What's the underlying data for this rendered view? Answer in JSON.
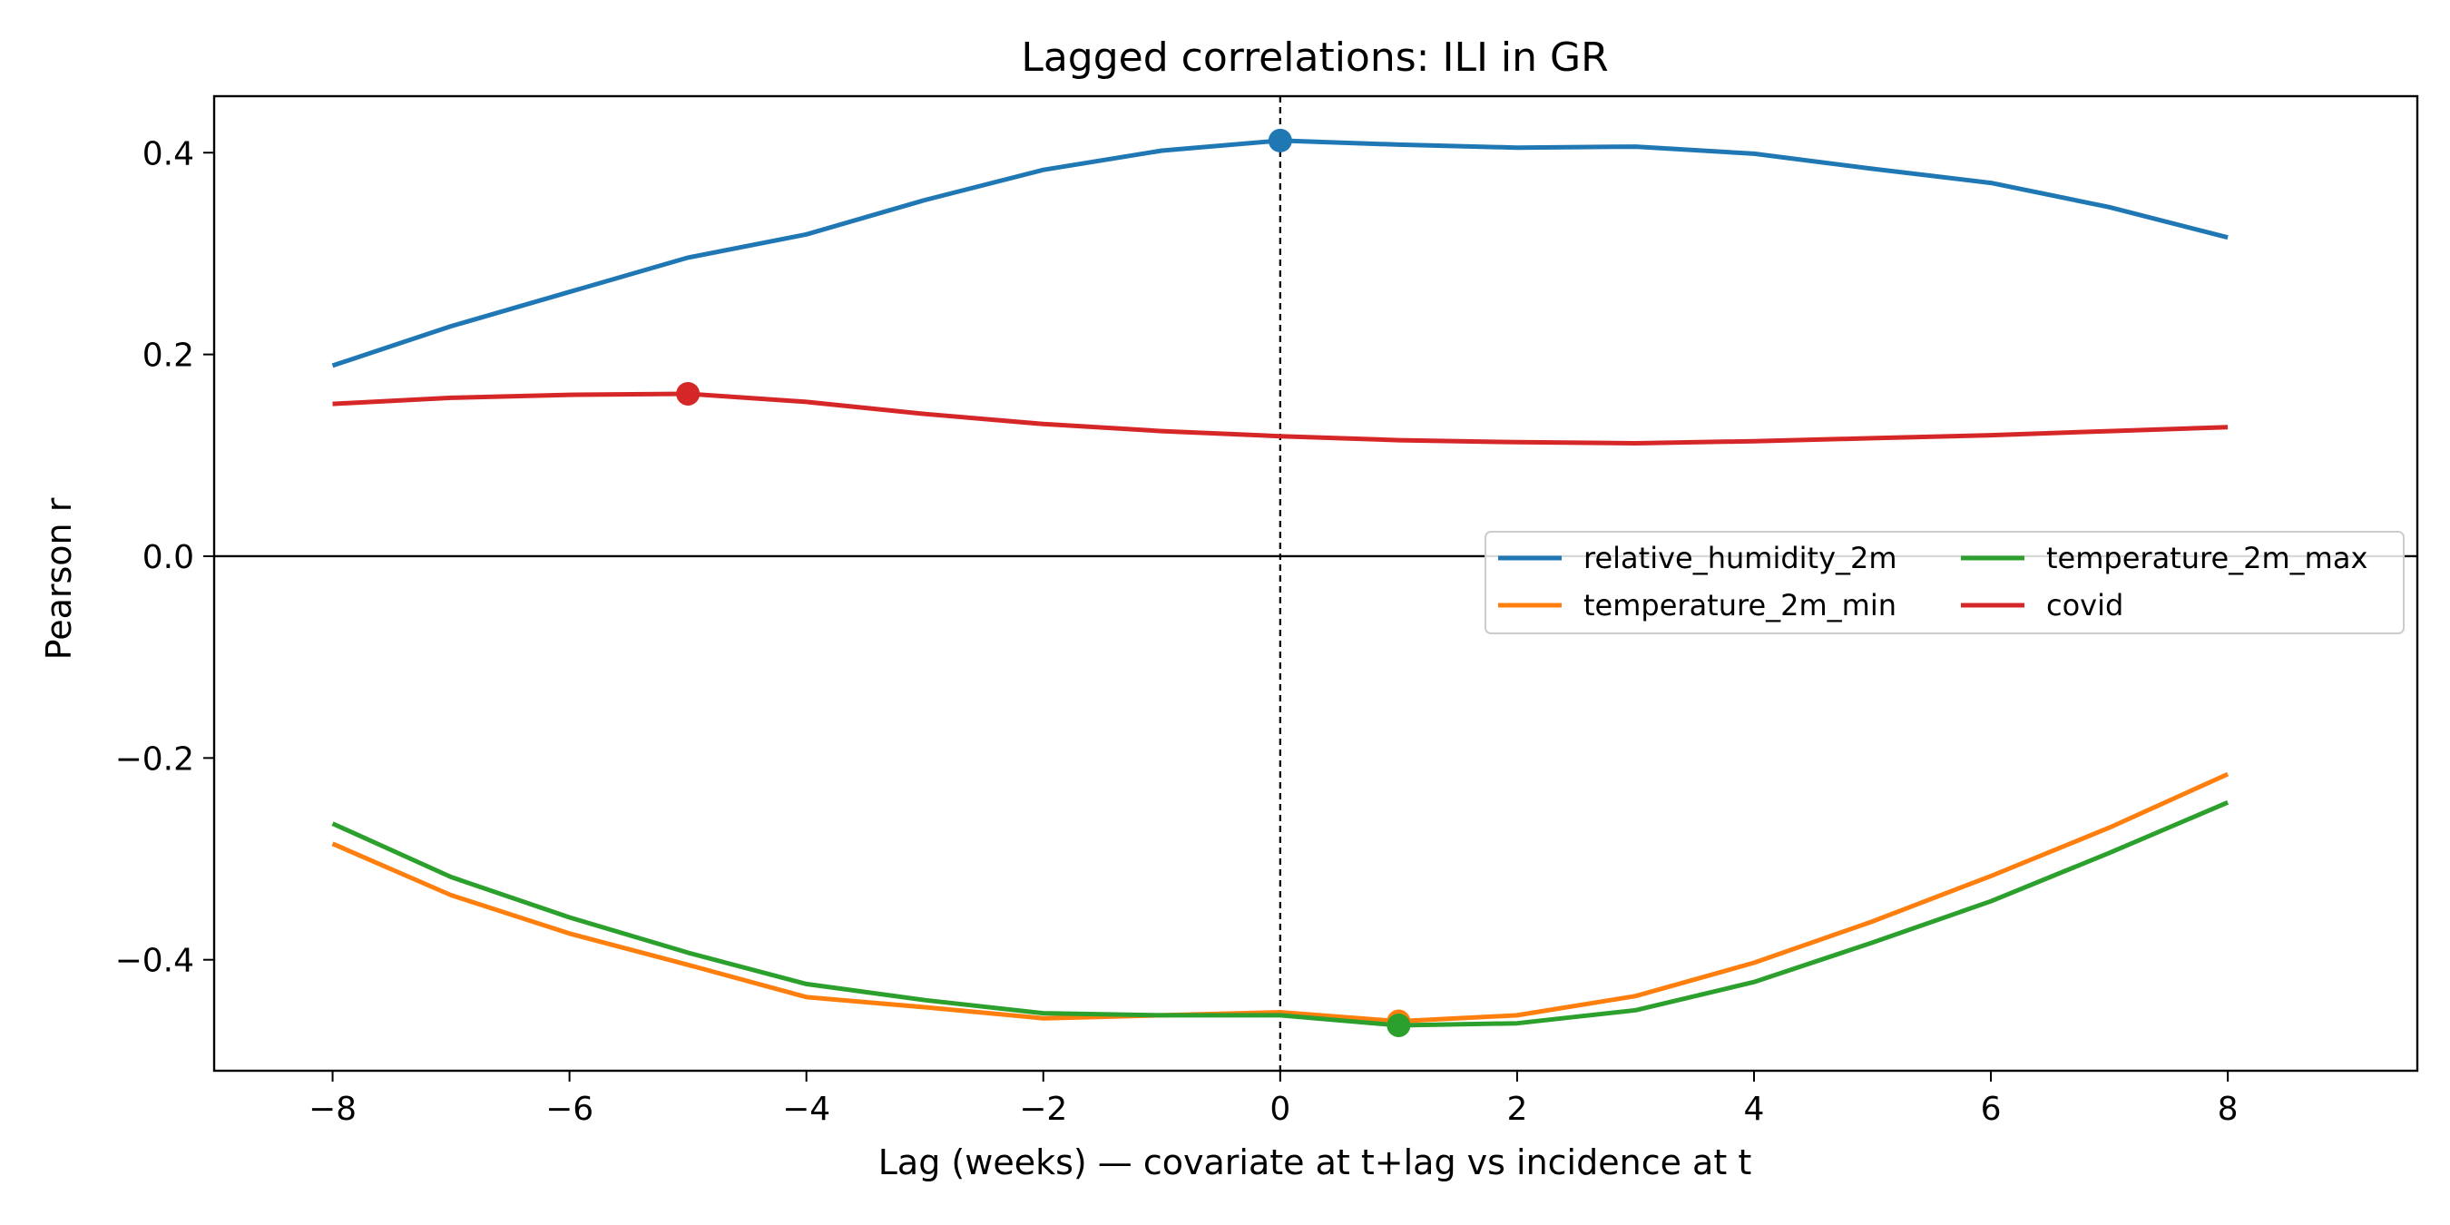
{
  "chart_data": {
    "type": "line",
    "title": "Lagged correlations: ILI in GR",
    "xlabel": "Lag (weeks) — covariate at t+lag vs incidence at t",
    "ylabel": "Pearson r",
    "xlim": [
      -9,
      9.6
    ],
    "ylim": [
      -0.51,
      0.456
    ],
    "x": [
      -8,
      -7,
      -6,
      -5,
      -4,
      -3,
      -2,
      -1,
      0,
      1,
      2,
      3,
      4,
      5,
      6,
      7,
      8
    ],
    "x_ticks": [
      {
        "value": -8,
        "label": "−8"
      },
      {
        "value": -6,
        "label": "−6"
      },
      {
        "value": -4,
        "label": "−4"
      },
      {
        "value": -2,
        "label": "−2"
      },
      {
        "value": 0,
        "label": "0"
      },
      {
        "value": 2,
        "label": "2"
      },
      {
        "value": 4,
        "label": "4"
      },
      {
        "value": 6,
        "label": "6"
      },
      {
        "value": 8,
        "label": "8"
      }
    ],
    "y_ticks": [
      {
        "value": 0.4,
        "label": "0.4"
      },
      {
        "value": 0.2,
        "label": "0.2"
      },
      {
        "value": 0.0,
        "label": "0.0"
      },
      {
        "value": -0.2,
        "label": "−0.2"
      },
      {
        "value": -0.4,
        "label": "−0.4"
      }
    ],
    "reference_lines": {
      "horizontal_zero": true,
      "vertical_dashed_at_x": 0
    },
    "grid": false,
    "legend": {
      "placement": "center-right",
      "columns": 2
    },
    "series": [
      {
        "name": "relative_humidity_2m",
        "color": "#1f77b4",
        "values": [
          0.189,
          0.228,
          0.262,
          0.296,
          0.319,
          0.353,
          0.383,
          0.402,
          0.412,
          0.408,
          0.405,
          0.406,
          0.399,
          0.384,
          0.37,
          0.346,
          0.316
        ],
        "marker": {
          "x": 0,
          "y": 0.412
        }
      },
      {
        "name": "temperature_2m_min",
        "color": "#ff7f0e",
        "values": [
          -0.285,
          -0.336,
          -0.374,
          -0.405,
          -0.437,
          -0.447,
          -0.458,
          -0.455,
          -0.452,
          -0.461,
          -0.455,
          -0.436,
          -0.403,
          -0.362,
          -0.317,
          -0.269,
          -0.216
        ],
        "marker": {
          "x": 1,
          "y": -0.461
        }
      },
      {
        "name": "temperature_2m_max",
        "color": "#2ca02c",
        "values": [
          -0.265,
          -0.318,
          -0.358,
          -0.393,
          -0.424,
          -0.44,
          -0.453,
          -0.455,
          -0.455,
          -0.465,
          -0.463,
          -0.45,
          -0.422,
          -0.383,
          -0.342,
          -0.294,
          -0.244
        ],
        "marker": {
          "x": 1,
          "y": -0.465
        }
      },
      {
        "name": "covid",
        "color": "#d62728",
        "values": [
          0.151,
          0.157,
          0.16,
          0.161,
          0.153,
          0.141,
          0.131,
          0.124,
          0.119,
          0.115,
          0.113,
          0.112,
          0.114,
          0.117,
          0.12,
          0.124,
          0.128
        ],
        "marker": {
          "x": -5,
          "y": 0.161
        }
      }
    ]
  }
}
